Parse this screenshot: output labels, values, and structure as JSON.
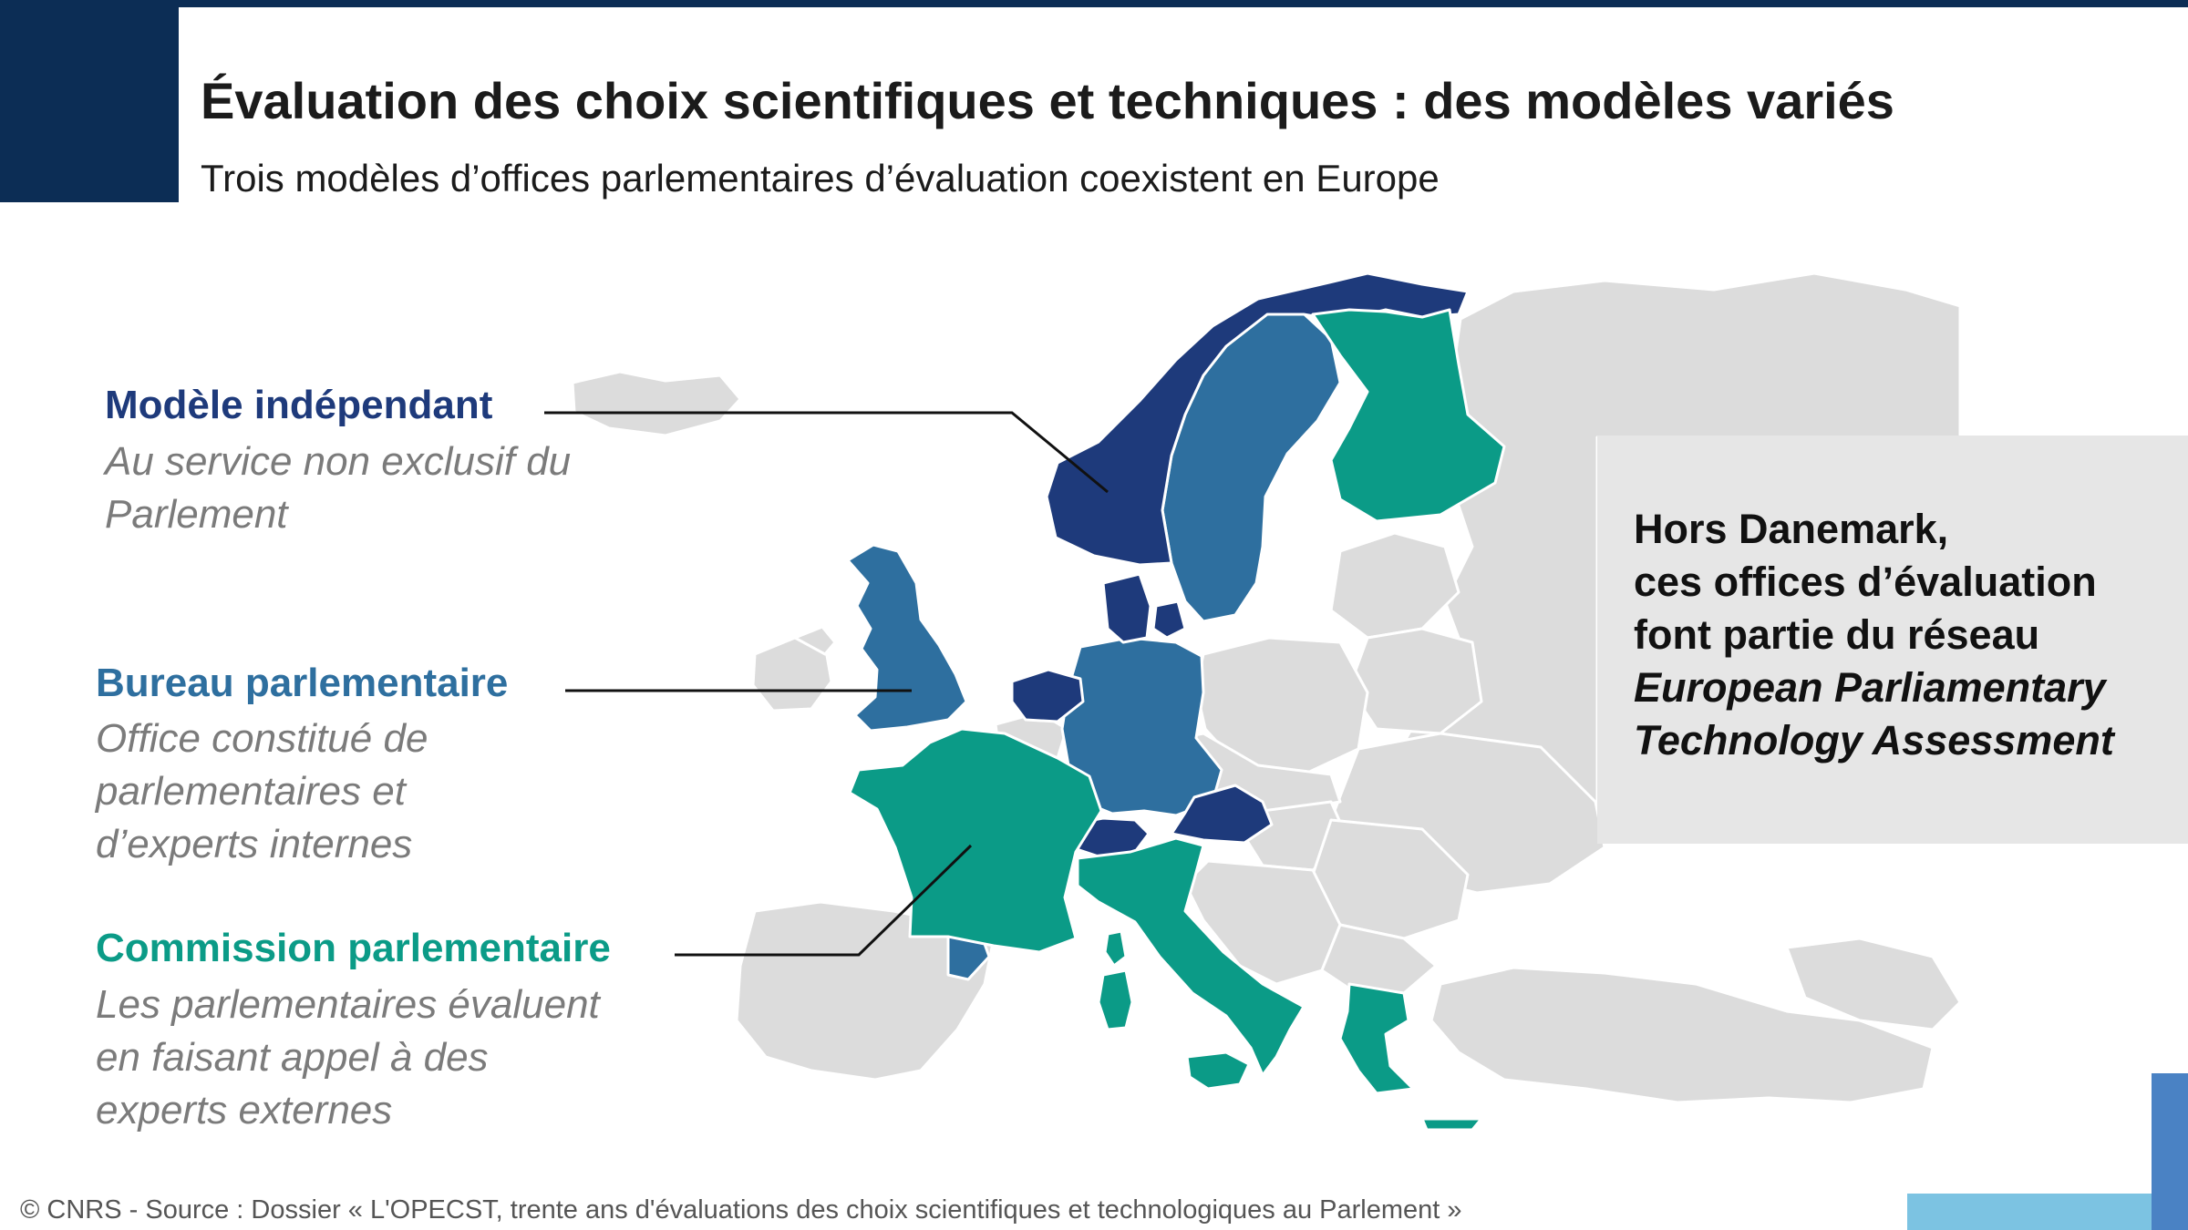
{
  "header": {
    "title": "Évaluation des choix scientifiques et techniques : des modèles variés",
    "subtitle": "Trois modèles d’offices parlementaires d’évaluation coexistent en Europe"
  },
  "legend": [
    {
      "title": "Modèle indépendant",
      "description": "Au service non exclusif du Parlement",
      "color": "#1e3a7b"
    },
    {
      "title": "Bureau parlementaire",
      "description": "Office constitué de parlementaires et d’experts internes",
      "color": "#2e6f9f"
    },
    {
      "title": "Commission parlementaire",
      "description": "Les parlementaires évaluent en faisant appel à des experts externes",
      "color": "#0b9b87"
    }
  ],
  "callout": {
    "lines": [
      "Hors Danemark,",
      "ces offices d’évaluation",
      "font partie du réseau"
    ],
    "italic_lines": [
      "European Parliamentary",
      "Technology Assessment"
    ]
  },
  "map": {
    "other_country_color": "#dcdcdc",
    "border_color": "#ffffff"
  },
  "footer": {
    "source": "© CNRS - Source : Dossier « L'OPECST, trente ans d'évaluations des choix scientifiques et technologiques au Parlement »"
  }
}
